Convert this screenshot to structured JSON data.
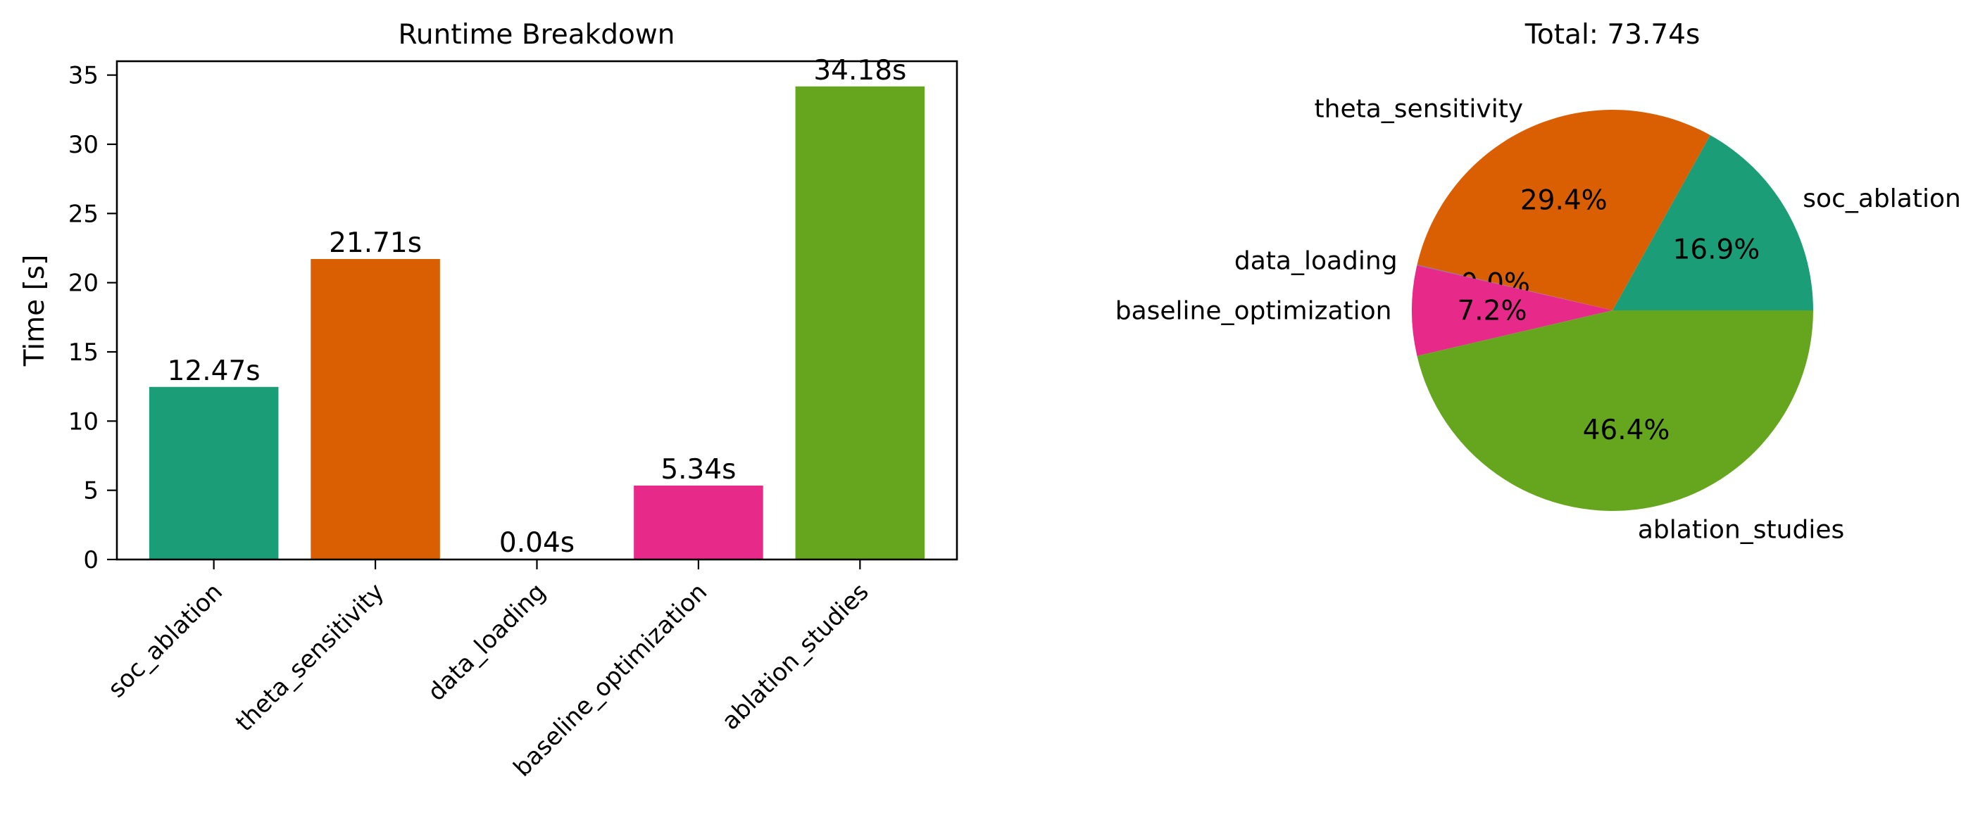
{
  "chart_data": [
    {
      "type": "bar",
      "title": "Runtime Breakdown",
      "xlabel": "",
      "ylabel": "Time [s]",
      "ylim": [
        0,
        36
      ],
      "yticks": [
        0,
        5,
        10,
        15,
        20,
        25,
        30,
        35
      ],
      "grid": false,
      "categories": [
        "soc_ablation",
        "theta_sensitivity",
        "data_loading",
        "baseline_optimization",
        "ablation_studies"
      ],
      "values": [
        12.47,
        21.71,
        0.04,
        5.34,
        34.18
      ],
      "value_labels": [
        "12.47s",
        "21.71s",
        "0.04s",
        "5.34s",
        "34.18s"
      ],
      "colors": [
        "#1b9e77",
        "#d95f02",
        "#7570b3",
        "#e7298a",
        "#66a61e"
      ]
    },
    {
      "type": "pie",
      "title": "Total: 73.74s",
      "labels": [
        "soc_ablation",
        "theta_sensitivity",
        "data_loading",
        "baseline_optimization",
        "ablation_studies"
      ],
      "values": [
        12.47,
        21.71,
        0.04,
        5.34,
        34.18
      ],
      "percent_labels": [
        "16.9%",
        "29.4%",
        "0.0%",
        "7.2%",
        "46.4%"
      ],
      "colors": [
        "#1b9e77",
        "#d95f02",
        "#7570b3",
        "#e7298a",
        "#66a61e"
      ]
    }
  ]
}
